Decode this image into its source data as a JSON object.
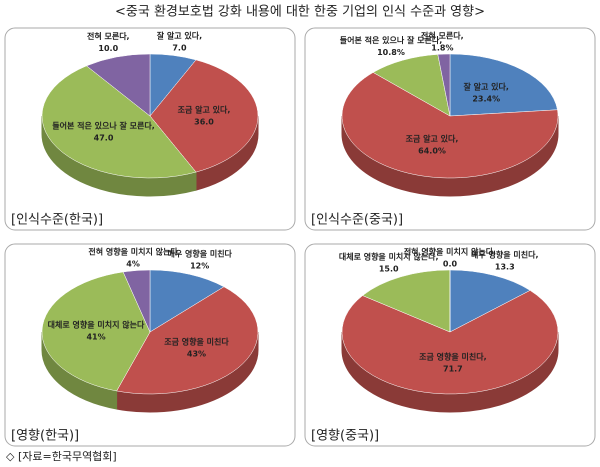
{
  "title": "<중국 환경보호법 강화 내용에 대한 한중 기업의 인식 수준과 영향>",
  "source": "◇ [자료=한국무역협회]",
  "chart_data": [
    {
      "type": "pie",
      "title": "[인식수준(한국)]",
      "categories": [
        "잘 알고 있다,",
        "조금 알고 있다,",
        "들어본 적은 있으나 잘 모른다,",
        "전혀 모른다,"
      ],
      "values": [
        7,
        36,
        47,
        10
      ],
      "value_labels": [
        "7.0",
        "36.0",
        "47.0",
        "10.0"
      ],
      "colors": [
        "#4f81bd",
        "#c0504d",
        "#9bbb59",
        "#8064a2"
      ]
    },
    {
      "type": "pie",
      "title": "[인식수준(중국)]",
      "categories": [
        "잘 알고 있다,",
        "조금 알고 있다,",
        "들어본 적은 있으나 잘 모른다,",
        "전혀 모른다,"
      ],
      "values": [
        23.4,
        64,
        10.8,
        1.8
      ],
      "value_labels": [
        "23.4%",
        "64.0%",
        "10.8%",
        "1.8%"
      ],
      "colors": [
        "#4f81bd",
        "#c0504d",
        "#9bbb59",
        "#8064a2"
      ]
    },
    {
      "type": "pie",
      "title": "[영향(한국)]",
      "categories": [
        "매우 영향을 미친다",
        "조금 영향을 미친다",
        "대체로 영향을 미치지 않는다",
        "전혀 영향을 미치지 않는다"
      ],
      "values": [
        12,
        43,
        41,
        4
      ],
      "value_labels": [
        "12%",
        "43%",
        "41%",
        "4%"
      ],
      "colors": [
        "#4f81bd",
        "#c0504d",
        "#9bbb59",
        "#8064a2"
      ]
    },
    {
      "type": "pie",
      "title": "[영향(중국)]",
      "categories": [
        "매우 영향을 미친다,",
        "조금 영향을 미친다,",
        "대체로 영향을 미치지 않는다,",
        "전혀 영향을 미치지 않는다,"
      ],
      "values": [
        13.3,
        71.7,
        15,
        0
      ],
      "value_labels": [
        "13.3",
        "71.7",
        "15.0",
        "0.0"
      ],
      "colors": [
        "#4f81bd",
        "#c0504d",
        "#9bbb59",
        "#8064a2"
      ]
    }
  ]
}
